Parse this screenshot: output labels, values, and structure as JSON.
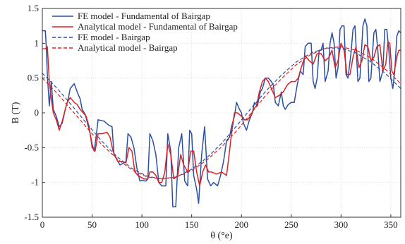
{
  "chart_data": {
    "type": "line",
    "title": "",
    "xlabel": "θ (°e)",
    "ylabel": "B (T)",
    "xlim": [
      0,
      360
    ],
    "ylim": [
      -1.5,
      1.5
    ],
    "xticks": [
      0,
      50,
      100,
      150,
      200,
      250,
      300,
      350
    ],
    "yticks": [
      -1.5,
      -1,
      -0.5,
      0,
      0.5,
      1,
      1.5
    ],
    "xtick_labels": [
      "0",
      "50",
      "100",
      "150",
      "200",
      "250",
      "300",
      "350"
    ],
    "ytick_labels": [
      "-1.5",
      "-1",
      "-0.5",
      "0",
      "0.5",
      "1",
      "1.5"
    ],
    "grid": true,
    "legend_position": "top-left",
    "series": [
      {
        "name": "FE model - Fundamental of Bairgap",
        "color": "#2b4fa3",
        "dash": "solid",
        "points": [
          [
            0,
            1.18
          ],
          [
            3,
            1.18
          ],
          [
            4,
            0.95
          ],
          [
            5,
            0.55
          ],
          [
            7,
            0.1
          ],
          [
            9,
            0.45
          ],
          [
            11,
            0.05
          ],
          [
            14,
            -0.05
          ],
          [
            17,
            -0.2
          ],
          [
            20,
            -0.15
          ],
          [
            23,
            0.05
          ],
          [
            26,
            0.2
          ],
          [
            28,
            0.35
          ],
          [
            32,
            0.42
          ],
          [
            35,
            0.3
          ],
          [
            38,
            0.2
          ],
          [
            40,
            0.05
          ],
          [
            43,
            -0.02
          ],
          [
            46,
            -0.18
          ],
          [
            48,
            -0.3
          ],
          [
            50,
            -0.45
          ],
          [
            52,
            -0.55
          ],
          [
            54,
            -0.35
          ],
          [
            56,
            -0.1
          ],
          [
            62,
            -0.12
          ],
          [
            67,
            -0.18
          ],
          [
            70,
            -0.2
          ],
          [
            72,
            -0.6
          ],
          [
            78,
            -0.75
          ],
          [
            84,
            -0.7
          ],
          [
            86,
            -0.3
          ],
          [
            89,
            -0.35
          ],
          [
            92,
            -0.5
          ],
          [
            95,
            -0.8
          ],
          [
            98,
            -0.98
          ],
          [
            100,
            -0.97
          ],
          [
            104,
            -0.98
          ],
          [
            106,
            -0.95
          ],
          [
            108,
            -0.3
          ],
          [
            111,
            -0.4
          ],
          [
            114,
            -0.6
          ],
          [
            117,
            -1.0
          ],
          [
            120,
            -1.05
          ],
          [
            124,
            -1.05
          ],
          [
            126,
            -0.3
          ],
          [
            129,
            -0.55
          ],
          [
            131,
            -1.35
          ],
          [
            134,
            -1.35
          ],
          [
            137,
            -0.5
          ],
          [
            140,
            -0.3
          ],
          [
            143,
            -0.98
          ],
          [
            146,
            -1.05
          ],
          [
            148,
            -0.25
          ],
          [
            150,
            -0.3
          ],
          [
            152,
            -0.9
          ],
          [
            155,
            -1.1
          ],
          [
            157,
            -1.3
          ],
          [
            160,
            -0.6
          ],
          [
            163,
            -0.2
          ],
          [
            166,
            -0.95
          ],
          [
            169,
            -1.05
          ],
          [
            172,
            -1.0
          ],
          [
            176,
            -1.05
          ],
          [
            179,
            -0.9
          ],
          [
            182,
            -0.7
          ],
          [
            185,
            -0.4
          ],
          [
            188,
            -0.35
          ],
          [
            190,
            -0.2
          ],
          [
            193,
            -0.05
          ],
          [
            195,
            0.15
          ],
          [
            198,
            0.05
          ],
          [
            200,
            0.0
          ],
          [
            202,
            -0.15
          ],
          [
            205,
            -0.25
          ],
          [
            208,
            -0.1
          ],
          [
            211,
            0.0
          ],
          [
            213,
            0.15
          ],
          [
            216,
            0.1
          ],
          [
            219,
            0.3
          ],
          [
            221,
            0.35
          ],
          [
            224,
            0.5
          ],
          [
            227,
            0.5
          ],
          [
            230,
            0.45
          ],
          [
            232,
            0.4
          ],
          [
            234,
            0.15
          ],
          [
            237,
            0.1
          ],
          [
            240,
            0.3
          ],
          [
            242,
            0.1
          ],
          [
            244,
            0.05
          ],
          [
            247,
            0.12
          ],
          [
            250,
            0.15
          ],
          [
            253,
            0.15
          ],
          [
            256,
            0.4
          ],
          [
            259,
            0.6
          ],
          [
            262,
            0.55
          ],
          [
            264,
            0.95
          ],
          [
            267,
            1.0
          ],
          [
            270,
            1.0
          ],
          [
            272,
            0.45
          ],
          [
            274,
            0.35
          ],
          [
            276,
            0.5
          ],
          [
            278,
            0.9
          ],
          [
            280,
            0.9
          ],
          [
            282,
            1.0
          ],
          [
            284,
            0.45
          ],
          [
            287,
            0.6
          ],
          [
            289,
            1.0
          ],
          [
            291,
            1.15
          ],
          [
            293,
            1.0
          ],
          [
            295,
            0.5
          ],
          [
            297,
            0.65
          ],
          [
            299,
            1.2
          ],
          [
            301,
            1.25
          ],
          [
            303,
            1.25
          ],
          [
            305,
            0.55
          ],
          [
            307,
            0.5
          ],
          [
            310,
            0.85
          ],
          [
            312,
            1.2
          ],
          [
            314,
            1.25
          ],
          [
            317,
            0.45
          ],
          [
            319,
            0.5
          ],
          [
            322,
            1.25
          ],
          [
            324,
            1.35
          ],
          [
            326,
            1.25
          ],
          [
            328,
            0.45
          ],
          [
            330,
            0.5
          ],
          [
            333,
            1.15
          ],
          [
            335,
            1.2
          ],
          [
            337,
            0.9
          ],
          [
            339,
            0.45
          ],
          [
            342,
            0.6
          ],
          [
            344,
            1.2
          ],
          [
            346,
            1.2
          ],
          [
            348,
            0.9
          ],
          [
            350,
            0.5
          ],
          [
            352,
            0.35
          ],
          [
            354,
            0.6
          ],
          [
            356,
            1.1
          ],
          [
            358,
            1.18
          ],
          [
            360,
            1.15
          ]
        ]
      },
      {
        "name": "Analytical model - Fundamental of Bairgap",
        "color": "#e02020",
        "dash": "solid",
        "points": [
          [
            0,
            0.92
          ],
          [
            3,
            0.92
          ],
          [
            5,
            0.95
          ],
          [
            7,
            0.45
          ],
          [
            9,
            0.2
          ],
          [
            11,
            0.0
          ],
          [
            14,
            -0.1
          ],
          [
            17,
            -0.25
          ],
          [
            20,
            -0.12
          ],
          [
            23,
            0.05
          ],
          [
            25,
            0.15
          ],
          [
            28,
            0.22
          ],
          [
            32,
            0.15
          ],
          [
            35,
            0.12
          ],
          [
            38,
            0.05
          ],
          [
            41,
            0.0
          ],
          [
            44,
            -0.05
          ],
          [
            47,
            -0.2
          ],
          [
            50,
            -0.5
          ],
          [
            53,
            -0.55
          ],
          [
            56,
            -0.3
          ],
          [
            60,
            -0.3
          ],
          [
            65,
            -0.28
          ],
          [
            68,
            -0.35
          ],
          [
            71,
            -0.55
          ],
          [
            76,
            -0.7
          ],
          [
            80,
            -0.7
          ],
          [
            84,
            -0.72
          ],
          [
            87,
            -0.5
          ],
          [
            90,
            -0.55
          ],
          [
            93,
            -0.85
          ],
          [
            96,
            -0.9
          ],
          [
            102,
            -0.95
          ],
          [
            106,
            -0.95
          ],
          [
            108,
            -0.85
          ],
          [
            111,
            -0.85
          ],
          [
            114,
            -0.9
          ],
          [
            117,
            -1.0
          ],
          [
            120,
            -1.0
          ],
          [
            123,
            -0.85
          ],
          [
            126,
            -0.45
          ],
          [
            129,
            -0.6
          ],
          [
            132,
            -0.95
          ],
          [
            136,
            -0.9
          ],
          [
            139,
            -0.6
          ],
          [
            142,
            -0.75
          ],
          [
            146,
            -0.85
          ],
          [
            149,
            -0.55
          ],
          [
            152,
            -0.55
          ],
          [
            155,
            -0.85
          ],
          [
            158,
            -1.05
          ],
          [
            161,
            -0.85
          ],
          [
            164,
            -0.75
          ],
          [
            167,
            -0.85
          ],
          [
            170,
            -0.85
          ],
          [
            175,
            -0.88
          ],
          [
            180,
            -0.85
          ],
          [
            185,
            -0.9
          ],
          [
            188,
            -0.55
          ],
          [
            190,
            -0.3
          ],
          [
            193,
            0.0
          ],
          [
            196,
            0.0
          ],
          [
            200,
            -0.05
          ],
          [
            203,
            -0.1
          ],
          [
            206,
            -0.1
          ],
          [
            209,
            -0.05
          ],
          [
            212,
            0.05
          ],
          [
            215,
            0.1
          ],
          [
            218,
            0.3
          ],
          [
            221,
            0.45
          ],
          [
            224,
            0.5
          ],
          [
            227,
            0.45
          ],
          [
            230,
            0.35
          ],
          [
            234,
            0.22
          ],
          [
            238,
            0.25
          ],
          [
            242,
            0.3
          ],
          [
            246,
            0.4
          ],
          [
            250,
            0.45
          ],
          [
            254,
            0.45
          ],
          [
            257,
            0.5
          ],
          [
            260,
            0.65
          ],
          [
            264,
            0.82
          ],
          [
            268,
            0.75
          ],
          [
            272,
            0.7
          ],
          [
            276,
            0.85
          ],
          [
            280,
            0.85
          ],
          [
            284,
            0.75
          ],
          [
            288,
            0.8
          ],
          [
            291,
            0.9
          ],
          [
            294,
            0.65
          ],
          [
            297,
            0.75
          ],
          [
            300,
            1.0
          ],
          [
            303,
            0.9
          ],
          [
            306,
            0.55
          ],
          [
            309,
            0.55
          ],
          [
            312,
            0.8
          ],
          [
            315,
            0.95
          ],
          [
            318,
            0.65
          ],
          [
            321,
            0.75
          ],
          [
            324,
            0.98
          ],
          [
            327,
            0.95
          ],
          [
            330,
            0.75
          ],
          [
            333,
            0.8
          ],
          [
            336,
            0.95
          ],
          [
            339,
            0.98
          ],
          [
            342,
            0.6
          ],
          [
            345,
            0.7
          ],
          [
            347,
            1.02
          ],
          [
            349,
            1.0
          ],
          [
            351,
            0.6
          ],
          [
            353,
            0.55
          ],
          [
            356,
            0.8
          ],
          [
            358,
            0.9
          ],
          [
            360,
            0.9
          ]
        ]
      },
      {
        "name": "FE model - Bairgap",
        "color": "#2b4fa3",
        "dash": "dashed",
        "points": [
          [
            0,
            0.57
          ],
          [
            15,
            0.35
          ],
          [
            30,
            0.1
          ],
          [
            45,
            -0.16
          ],
          [
            60,
            -0.41
          ],
          [
            75,
            -0.63
          ],
          [
            90,
            -0.8
          ],
          [
            105,
            -0.91
          ],
          [
            120,
            -0.95
          ],
          [
            135,
            -0.92
          ],
          [
            150,
            -0.81
          ],
          [
            165,
            -0.65
          ],
          [
            180,
            -0.44
          ],
          [
            195,
            -0.19
          ],
          [
            210,
            0.07
          ],
          [
            225,
            0.32
          ],
          [
            240,
            0.54
          ],
          [
            255,
            0.73
          ],
          [
            270,
            0.86
          ],
          [
            285,
            0.93
          ],
          [
            300,
            0.93
          ],
          [
            315,
            0.86
          ],
          [
            330,
            0.73
          ],
          [
            345,
            0.56
          ],
          [
            360,
            0.35
          ]
        ]
      },
      {
        "name": "Analytical model - Bairgap",
        "color": "#e02020",
        "dash": "dashed",
        "points": [
          [
            0,
            0.5
          ],
          [
            15,
            0.28
          ],
          [
            30,
            0.03
          ],
          [
            45,
            -0.22
          ],
          [
            60,
            -0.46
          ],
          [
            75,
            -0.66
          ],
          [
            90,
            -0.82
          ],
          [
            105,
            -0.92
          ],
          [
            120,
            -0.95
          ],
          [
            135,
            -0.92
          ],
          [
            150,
            -0.83
          ],
          [
            165,
            -0.68
          ],
          [
            180,
            -0.49
          ],
          [
            195,
            -0.26
          ],
          [
            210,
            0.0
          ],
          [
            225,
            0.26
          ],
          [
            240,
            0.49
          ],
          [
            255,
            0.69
          ],
          [
            270,
            0.84
          ],
          [
            285,
            0.93
          ],
          [
            300,
            0.95
          ],
          [
            315,
            0.9
          ],
          [
            330,
            0.79
          ],
          [
            345,
            0.62
          ],
          [
            360,
            0.42
          ]
        ]
      }
    ]
  }
}
